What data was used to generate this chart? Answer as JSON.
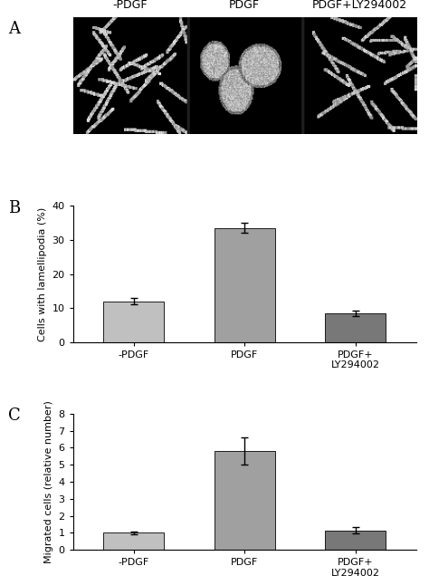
{
  "panel_A_label": "A",
  "panel_B_label": "B",
  "panel_C_label": "C",
  "A_sublabels": [
    "-PDGF",
    "PDGF",
    "PDGF+LY294002"
  ],
  "bar_categories": [
    "-PDGF",
    "PDGF",
    "PDGF+\nLY294002"
  ],
  "B_values": [
    12.0,
    33.5,
    8.5
  ],
  "B_errors": [
    1.0,
    1.5,
    0.8
  ],
  "B_ylabel": "Cells with lamellipodia (%)",
  "B_ylim": [
    0,
    40
  ],
  "B_yticks": [
    0,
    10,
    20,
    30,
    40
  ],
  "C_values": [
    1.0,
    5.8,
    1.15
  ],
  "C_errors": [
    0.1,
    0.8,
    0.2
  ],
  "C_ylabel": "Migrated cells (relative number)",
  "C_ylim": [
    0,
    8
  ],
  "C_yticks": [
    0,
    1,
    2,
    3,
    4,
    5,
    6,
    7,
    8
  ],
  "bar_colors": [
    "#c0c0c0",
    "#a0a0a0",
    "#787878"
  ],
  "bar_edge_color": "#000000",
  "bar_width": 0.55,
  "error_color": "#000000",
  "error_capsize": 3,
  "error_linewidth": 1.0,
  "bg_color": "#ffffff",
  "axis_label_fontsize": 8,
  "tick_fontsize": 8,
  "panel_label_fontsize": 13,
  "sublabel_fontsize": 9
}
